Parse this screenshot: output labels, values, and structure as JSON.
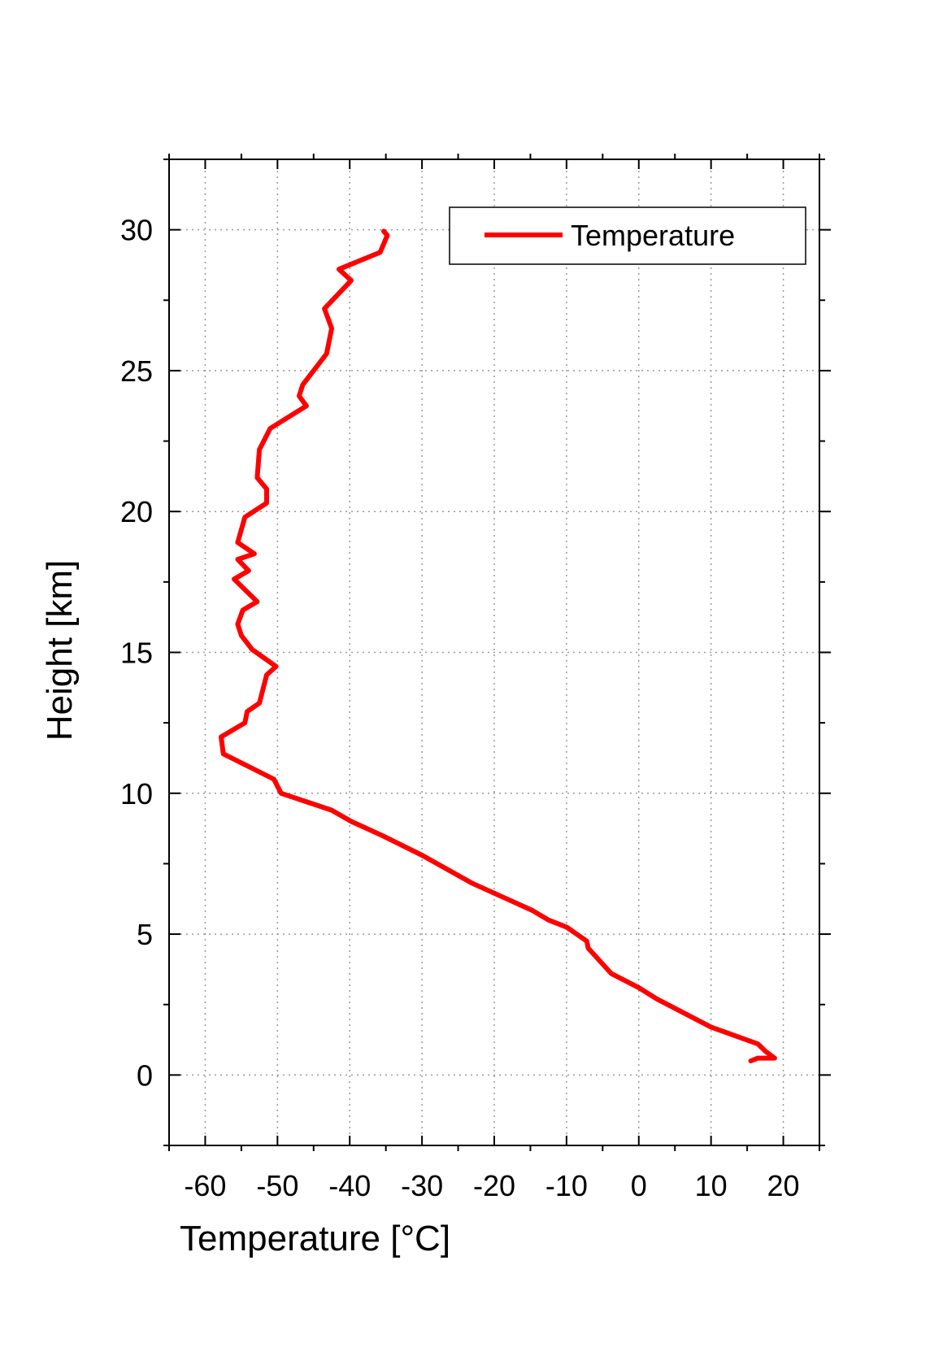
{
  "chart_data": {
    "type": "line",
    "title": "",
    "xlabel": "Temperature [°C]",
    "ylabel": "Height [km]",
    "xlim": [
      -65,
      25
    ],
    "ylim": [
      -2.5,
      32.5
    ],
    "xticks": [
      -60,
      -50,
      -40,
      -30,
      -20,
      -10,
      0,
      10,
      20
    ],
    "yticks": [
      0,
      5,
      10,
      15,
      20,
      25,
      30
    ],
    "x_tick_labels": [
      "-60",
      "-50",
      "-40",
      "-30",
      "-20",
      "-10",
      "0",
      "10",
      "20"
    ],
    "y_tick_labels": [
      "0",
      "5",
      "10",
      "15",
      "20",
      "25",
      "30"
    ],
    "grid": true,
    "legend": {
      "position": "top-right",
      "entries": [
        "Temperature"
      ]
    },
    "series": [
      {
        "name": "Temperature",
        "color": "#ff0000",
        "points": [
          [
            15.5,
            0.5
          ],
          [
            16.5,
            0.6
          ],
          [
            18.8,
            0.6
          ],
          [
            17.5,
            0.85
          ],
          [
            16.5,
            1.1
          ],
          [
            10,
            1.7
          ],
          [
            2.5,
            2.7
          ],
          [
            0,
            3.1
          ],
          [
            -3.8,
            3.6
          ],
          [
            -7,
            4.5
          ],
          [
            -7.2,
            4.75
          ],
          [
            -10,
            5.25
          ],
          [
            -12.5,
            5.5
          ],
          [
            -14.8,
            5.85
          ],
          [
            -23,
            6.8
          ],
          [
            -30,
            7.8
          ],
          [
            -35.5,
            8.5
          ],
          [
            -39.8,
            9.0
          ],
          [
            -42.5,
            9.4
          ],
          [
            -49.5,
            10.0
          ],
          [
            -50.5,
            10.5
          ],
          [
            -57.5,
            11.4
          ],
          [
            -57.8,
            12.0
          ],
          [
            -54.5,
            12.5
          ],
          [
            -54.2,
            12.9
          ],
          [
            -52.5,
            13.2
          ],
          [
            -51.5,
            14.2
          ],
          [
            -50.2,
            14.5
          ],
          [
            -53.5,
            15.1
          ],
          [
            -55,
            15.6
          ],
          [
            -55.5,
            16.0
          ],
          [
            -54.8,
            16.5
          ],
          [
            -52.8,
            16.8
          ],
          [
            -56,
            17.6
          ],
          [
            -54,
            17.9
          ],
          [
            -55.5,
            18.3
          ],
          [
            -53.2,
            18.5
          ],
          [
            -55.5,
            18.9
          ],
          [
            -54.5,
            19.8
          ],
          [
            -51.5,
            20.3
          ],
          [
            -51.5,
            20.8
          ],
          [
            -52.8,
            21.2
          ],
          [
            -52.5,
            22.2
          ],
          [
            -51,
            22.95
          ],
          [
            -46,
            23.75
          ],
          [
            -47,
            24.1
          ],
          [
            -46.5,
            24.5
          ],
          [
            -43.2,
            25.6
          ],
          [
            -42.5,
            26.5
          ],
          [
            -43.5,
            27.2
          ],
          [
            -39.8,
            28.2
          ],
          [
            -41.5,
            28.6
          ],
          [
            -35.8,
            29.2
          ],
          [
            -34.8,
            29.8
          ],
          [
            -35.3,
            29.95
          ]
        ]
      }
    ]
  }
}
